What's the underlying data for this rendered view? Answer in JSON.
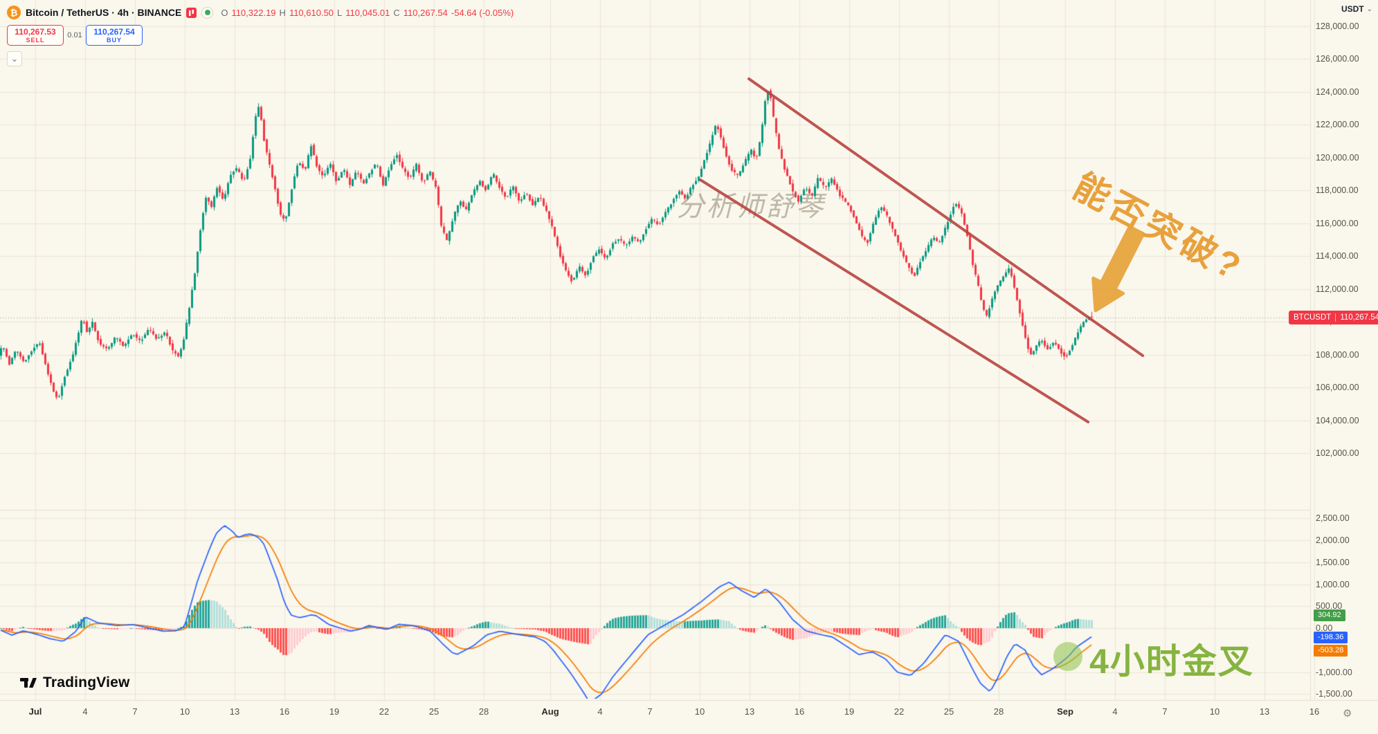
{
  "header": {
    "title": "Bitcoin / TetherUS · 4h · BINANCE",
    "ohlc": {
      "open_label": "O",
      "open": "110,322.19",
      "high_label": "H",
      "high": "110,610.50",
      "low_label": "L",
      "low": "110,045.01",
      "close_label": "C",
      "close": "110,267.54",
      "change": "-54.64 (-0.05%)"
    }
  },
  "trade_panel": {
    "sell_price": "110,267.53",
    "sell_label": "SELL",
    "spread": "0.01",
    "buy_price": "110,267.54",
    "buy_label": "BUY"
  },
  "price_axis": {
    "unit": "USDT",
    "labels": [
      "128,000.00",
      "126,000.00",
      "124,000.00",
      "122,000.00",
      "120,000.00",
      "118,000.00",
      "116,000.00",
      "114,000.00",
      "112,000.00",
      "110,000.00",
      "108,000.00",
      "106,000.00",
      "104,000.00",
      "102,000.00"
    ],
    "current_price_badge": {
      "symbol": "BTCUSDT",
      "price": "110,267.54"
    }
  },
  "macd_axis": {
    "labels": [
      "2,500.00",
      "2,000.00",
      "1,500.00",
      "1,000.00",
      "500.00",
      "0.00",
      "-1,000.00",
      "-1,500.00"
    ],
    "badges": [
      {
        "text": "304.92",
        "color": "#449E47"
      },
      {
        "text": "-198.36",
        "color": "#2962FF"
      },
      {
        "text": "-503.28",
        "color": "#F57C00"
      }
    ]
  },
  "time_axis": {
    "labels": [
      {
        "d": 0,
        "text": "Jul",
        "major": true
      },
      {
        "d": 3,
        "text": "4"
      },
      {
        "d": 6,
        "text": "7"
      },
      {
        "d": 9,
        "text": "10"
      },
      {
        "d": 12,
        "text": "13"
      },
      {
        "d": 15,
        "text": "16"
      },
      {
        "d": 18,
        "text": "19"
      },
      {
        "d": 21,
        "text": "22"
      },
      {
        "d": 24,
        "text": "25"
      },
      {
        "d": 27,
        "text": "28"
      },
      {
        "d": 31,
        "text": "Aug",
        "major": true
      },
      {
        "d": 34,
        "text": "4"
      },
      {
        "d": 37,
        "text": "7"
      },
      {
        "d": 40,
        "text": "10"
      },
      {
        "d": 43,
        "text": "13"
      },
      {
        "d": 46,
        "text": "16"
      },
      {
        "d": 49,
        "text": "19"
      },
      {
        "d": 52,
        "text": "22"
      },
      {
        "d": 55,
        "text": "25"
      },
      {
        "d": 58,
        "text": "28"
      },
      {
        "d": 62,
        "text": "Sep",
        "major": true
      },
      {
        "d": 65,
        "text": "4"
      },
      {
        "d": 68,
        "text": "7"
      },
      {
        "d": 71,
        "text": "10"
      },
      {
        "d": 74,
        "text": "13"
      },
      {
        "d": 77,
        "text": "16"
      }
    ]
  },
  "annotations": {
    "watermark": "分析师舒琴",
    "breakout_question": "能否突破?",
    "golden_cross": "4小时金叉"
  },
  "footer": {
    "logo": "TradingView"
  },
  "chart_data": {
    "type": "candlestick",
    "symbol": "BTCUSDT",
    "exchange": "BINANCE",
    "interval": "4h",
    "price_axis": {
      "min": 102000,
      "max": 128000,
      "step": 2000,
      "ticks": [
        128000,
        126000,
        124000,
        122000,
        120000,
        118000,
        116000,
        114000,
        112000,
        110000,
        108000,
        106000,
        104000,
        102000
      ]
    },
    "current_price": 110267.54,
    "last_candle": {
      "open": 110322.19,
      "high": 110610.5,
      "low": 110045.01,
      "close": 110267.54
    },
    "price_keyframes": [
      [
        -2.2,
        107900
      ],
      [
        -1.9,
        108600
      ],
      [
        -1.5,
        107400
      ],
      [
        -1.1,
        108300
      ],
      [
        -0.6,
        107500
      ],
      [
        -0.2,
        108200
      ],
      [
        0.3,
        108800
      ],
      [
        0.8,
        106900
      ],
      [
        1.2,
        105600
      ],
      [
        1.45,
        105250
      ],
      [
        1.8,
        106600
      ],
      [
        2.3,
        107900
      ],
      [
        2.9,
        110300
      ],
      [
        3.2,
        109300
      ],
      [
        3.5,
        110000
      ],
      [
        3.9,
        108700
      ],
      [
        4.4,
        108300
      ],
      [
        4.9,
        109100
      ],
      [
        5.4,
        108500
      ],
      [
        5.9,
        109300
      ],
      [
        6.4,
        108800
      ],
      [
        6.9,
        109600
      ],
      [
        7.4,
        108900
      ],
      [
        7.9,
        109400
      ],
      [
        8.3,
        108300
      ],
      [
        8.7,
        107900
      ],
      [
        9.0,
        108900
      ],
      [
        9.35,
        111000
      ],
      [
        9.7,
        113200
      ],
      [
        10.05,
        116000
      ],
      [
        10.35,
        117700
      ],
      [
        10.65,
        116900
      ],
      [
        11.0,
        118200
      ],
      [
        11.4,
        117400
      ],
      [
        11.8,
        118900
      ],
      [
        12.2,
        119400
      ],
      [
        12.6,
        118500
      ],
      [
        13.0,
        119900
      ],
      [
        13.3,
        122400
      ],
      [
        13.55,
        123200
      ],
      [
        13.8,
        121200
      ],
      [
        14.1,
        119900
      ],
      [
        14.45,
        118300
      ],
      [
        14.8,
        116600
      ],
      [
        15.1,
        116100
      ],
      [
        15.5,
        118100
      ],
      [
        15.9,
        119800
      ],
      [
        16.3,
        119200
      ],
      [
        16.65,
        120800
      ],
      [
        17.0,
        119500
      ],
      [
        17.4,
        118800
      ],
      [
        17.8,
        119700
      ],
      [
        18.2,
        118500
      ],
      [
        18.6,
        119400
      ],
      [
        19.0,
        118300
      ],
      [
        19.4,
        119200
      ],
      [
        19.8,
        118400
      ],
      [
        20.2,
        119100
      ],
      [
        20.6,
        119700
      ],
      [
        21.0,
        118300
      ],
      [
        21.4,
        119400
      ],
      [
        21.8,
        120200
      ],
      [
        22.2,
        119300
      ],
      [
        22.6,
        118700
      ],
      [
        23.0,
        119600
      ],
      [
        23.4,
        118400
      ],
      [
        23.8,
        119200
      ],
      [
        24.2,
        118100
      ],
      [
        24.5,
        115800
      ],
      [
        24.85,
        114900
      ],
      [
        25.2,
        116300
      ],
      [
        25.6,
        117400
      ],
      [
        26.0,
        116800
      ],
      [
        26.4,
        117900
      ],
      [
        26.8,
        118600
      ],
      [
        27.2,
        118000
      ],
      [
        27.6,
        119100
      ],
      [
        28.0,
        118200
      ],
      [
        28.4,
        117500
      ],
      [
        28.8,
        118300
      ],
      [
        29.2,
        117300
      ],
      [
        29.6,
        117900
      ],
      [
        30.0,
        117100
      ],
      [
        30.4,
        117700
      ],
      [
        30.8,
        116800
      ],
      [
        31.2,
        115700
      ],
      [
        31.6,
        114200
      ],
      [
        32.0,
        113100
      ],
      [
        32.4,
        112400
      ],
      [
        32.8,
        113400
      ],
      [
        33.2,
        112800
      ],
      [
        33.6,
        113900
      ],
      [
        34.0,
        114400
      ],
      [
        34.4,
        113800
      ],
      [
        34.8,
        114700
      ],
      [
        35.2,
        115100
      ],
      [
        35.6,
        114600
      ],
      [
        36.0,
        115200
      ],
      [
        36.4,
        114800
      ],
      [
        36.8,
        115600
      ],
      [
        37.2,
        116300
      ],
      [
        37.6,
        115900
      ],
      [
        38.0,
        116700
      ],
      [
        38.4,
        117300
      ],
      [
        38.8,
        118000
      ],
      [
        39.2,
        117500
      ],
      [
        39.6,
        118300
      ],
      [
        40.0,
        118800
      ],
      [
        40.35,
        119900
      ],
      [
        40.7,
        120900
      ],
      [
        41.05,
        122100
      ],
      [
        41.35,
        121200
      ],
      [
        41.65,
        120100
      ],
      [
        42.0,
        119200
      ],
      [
        42.4,
        118900
      ],
      [
        42.8,
        119800
      ],
      [
        43.15,
        120500
      ],
      [
        43.45,
        119900
      ],
      [
        43.75,
        121300
      ],
      [
        44.05,
        123900
      ],
      [
        44.25,
        124200
      ],
      [
        44.55,
        122100
      ],
      [
        44.85,
        120400
      ],
      [
        45.2,
        119200
      ],
      [
        45.6,
        118100
      ],
      [
        46.0,
        117300
      ],
      [
        46.4,
        118200
      ],
      [
        46.8,
        117600
      ],
      [
        47.2,
        118800
      ],
      [
        47.6,
        118100
      ],
      [
        48.0,
        118700
      ],
      [
        48.5,
        117700
      ],
      [
        49.0,
        117100
      ],
      [
        49.4,
        116300
      ],
      [
        49.8,
        115200
      ],
      [
        50.15,
        114800
      ],
      [
        50.55,
        116100
      ],
      [
        50.95,
        117100
      ],
      [
        51.35,
        116400
      ],
      [
        51.75,
        115500
      ],
      [
        52.15,
        114400
      ],
      [
        52.55,
        113500
      ],
      [
        52.95,
        112700
      ],
      [
        53.35,
        113700
      ],
      [
        53.75,
        114500
      ],
      [
        54.1,
        115200
      ],
      [
        54.45,
        114700
      ],
      [
        54.8,
        115600
      ],
      [
        55.15,
        116500
      ],
      [
        55.45,
        117300
      ],
      [
        55.8,
        116700
      ],
      [
        56.15,
        115300
      ],
      [
        56.5,
        113500
      ],
      [
        56.8,
        112300
      ],
      [
        57.1,
        110900
      ],
      [
        57.35,
        110300
      ],
      [
        57.7,
        111500
      ],
      [
        58.0,
        112200
      ],
      [
        58.35,
        112800
      ],
      [
        58.7,
        113300
      ],
      [
        59.0,
        112100
      ],
      [
        59.3,
        110700
      ],
      [
        59.65,
        109100
      ],
      [
        59.95,
        107900
      ],
      [
        60.25,
        108400
      ],
      [
        60.6,
        108900
      ],
      [
        61.0,
        108300
      ],
      [
        61.4,
        108800
      ],
      [
        61.75,
        108200
      ],
      [
        62.1,
        107800
      ],
      [
        62.45,
        108500
      ],
      [
        62.8,
        109300
      ],
      [
        63.1,
        109900
      ],
      [
        63.5,
        110267
      ]
    ],
    "indicator": {
      "name": "MACD",
      "axis": {
        "min": -1500,
        "max": 2500,
        "step": 500,
        "ticks": [
          2500,
          2000,
          1500,
          1000,
          500,
          0,
          -1000,
          -1500
        ]
      },
      "last_values": {
        "histogram": 304.92,
        "macd": -198.36,
        "signal": -503.28
      },
      "macd_keyframes": [
        [
          -2.2,
          -40
        ],
        [
          -1.5,
          -160
        ],
        [
          -0.8,
          -60
        ],
        [
          0,
          -140
        ],
        [
          0.8,
          -240
        ],
        [
          1.6,
          -300
        ],
        [
          2.4,
          -60
        ],
        [
          2.9,
          260
        ],
        [
          3.7,
          120
        ],
        [
          4.8,
          60
        ],
        [
          5.8,
          80
        ],
        [
          6.8,
          0
        ],
        [
          7.6,
          -70
        ],
        [
          8.4,
          -60
        ],
        [
          8.9,
          30
        ],
        [
          9.7,
          1100
        ],
        [
          10.4,
          1800
        ],
        [
          10.8,
          2150
        ],
        [
          11.3,
          2340
        ],
        [
          11.8,
          2200
        ],
        [
          12.1,
          2060
        ],
        [
          12.5,
          2120
        ],
        [
          12.9,
          2150
        ],
        [
          13.4,
          2050
        ],
        [
          13.7,
          1900
        ],
        [
          14.1,
          1500
        ],
        [
          14.5,
          1100
        ],
        [
          14.9,
          600
        ],
        [
          15.3,
          300
        ],
        [
          15.8,
          240
        ],
        [
          16.1,
          260
        ],
        [
          16.5,
          300
        ],
        [
          16.8,
          290
        ],
        [
          17.6,
          80
        ],
        [
          18.3,
          0
        ],
        [
          18.9,
          -70
        ],
        [
          19.5,
          -20
        ],
        [
          20,
          60
        ],
        [
          20.6,
          10
        ],
        [
          21.1,
          -30
        ],
        [
          21.8,
          90
        ],
        [
          22.6,
          60
        ],
        [
          23.2,
          0
        ],
        [
          23.7,
          -70
        ],
        [
          24.5,
          -380
        ],
        [
          25,
          -550
        ],
        [
          25.3,
          -600
        ],
        [
          25.8,
          -500
        ],
        [
          26.3,
          -400
        ],
        [
          27.1,
          -150
        ],
        [
          27.9,
          -70
        ],
        [
          28.9,
          -140
        ],
        [
          30,
          -200
        ],
        [
          30.6,
          -300
        ],
        [
          31.1,
          -500
        ],
        [
          32.1,
          -1000
        ],
        [
          32.9,
          -1450
        ],
        [
          33.3,
          -1700
        ],
        [
          34,
          -1500
        ],
        [
          34.7,
          -1100
        ],
        [
          35.8,
          -600
        ],
        [
          36.8,
          -150
        ],
        [
          37.9,
          90
        ],
        [
          38.9,
          300
        ],
        [
          40,
          600
        ],
        [
          41.1,
          940
        ],
        [
          41.7,
          1050
        ],
        [
          42.4,
          860
        ],
        [
          43.2,
          700
        ],
        [
          43.9,
          900
        ],
        [
          44.7,
          600
        ],
        [
          45.5,
          200
        ],
        [
          46.3,
          -60
        ],
        [
          47.1,
          -140
        ],
        [
          47.9,
          -200
        ],
        [
          48.7,
          -400
        ],
        [
          49.5,
          -600
        ],
        [
          50.3,
          -540
        ],
        [
          51.1,
          -700
        ],
        [
          51.8,
          -1000
        ],
        [
          52.6,
          -1080
        ],
        [
          53.4,
          -800
        ],
        [
          54.2,
          -400
        ],
        [
          54.7,
          -150
        ],
        [
          55.5,
          -300
        ],
        [
          56.3,
          -900
        ],
        [
          56.8,
          -1250
        ],
        [
          57.4,
          -1450
        ],
        [
          57.9,
          -1100
        ],
        [
          58.4,
          -650
        ],
        [
          58.9,
          -350
        ],
        [
          59.5,
          -500
        ],
        [
          60,
          -860
        ],
        [
          60.5,
          -1060
        ],
        [
          61.1,
          -940
        ],
        [
          61.6,
          -800
        ],
        [
          62.1,
          -650
        ],
        [
          62.6,
          -430
        ],
        [
          63.1,
          -300
        ],
        [
          63.5,
          -198
        ]
      ]
    },
    "channel_lines": [
      {
        "d1": 42.96,
        "p1": 124800,
        "d2": 66.67,
        "p2": 107940
      },
      {
        "d1": 40.04,
        "p1": 118645,
        "d2": 63.38,
        "p2": 103897
      }
    ],
    "colors": {
      "up": "#089981",
      "down": "#F23645",
      "macd_line": "#2962FF",
      "signal_line": "#F57C00",
      "hist_up_grow": "#26A69A",
      "hist_up_fall": "#B2DFDB",
      "hist_dn_fall": "#FF5252",
      "hist_dn_grow": "#FFCDD2",
      "badge_hist": "#449E47",
      "badge_signal": "#F57C00",
      "channel": "#B5403C",
      "accent_orange": "#E8A13C",
      "accent_green": "#85B440"
    }
  }
}
